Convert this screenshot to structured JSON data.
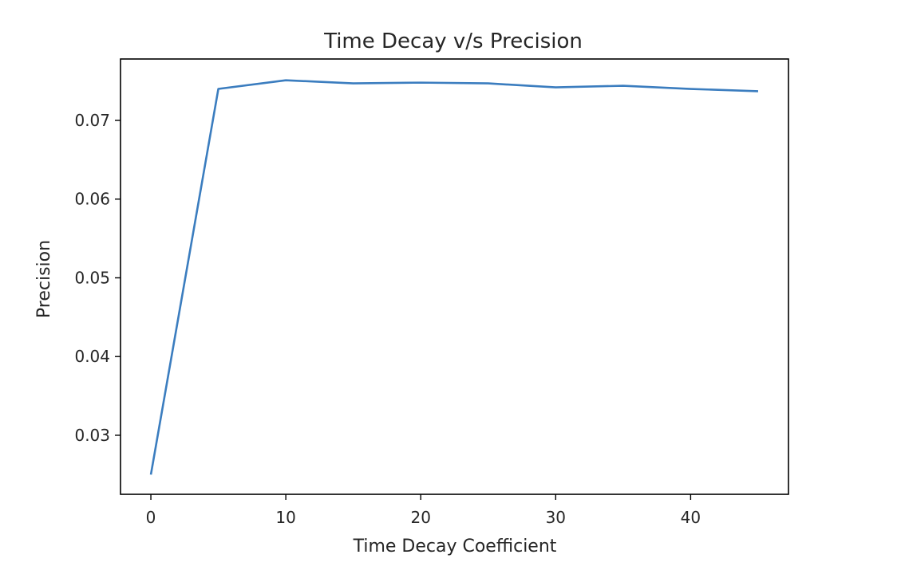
{
  "chart_data": {
    "type": "line",
    "title": "Time Decay v/s Precision",
    "xlabel": "Time Decay Coefficient",
    "ylabel": "Precision",
    "x": [
      0,
      5,
      10,
      15,
      20,
      25,
      30,
      35,
      40,
      45
    ],
    "series": [
      {
        "values": [
          0.025,
          0.074,
          0.0751,
          0.0747,
          0.0748,
          0.0747,
          0.0742,
          0.0744,
          0.074,
          0.0737
        ]
      }
    ],
    "xticks": [
      0,
      10,
      20,
      30,
      40
    ],
    "xtick_labels": [
      "0",
      "10",
      "20",
      "30",
      "40"
    ],
    "yticks": [
      0.03,
      0.04,
      0.05,
      0.06,
      0.07
    ],
    "ytick_labels": [
      "0.03",
      "0.04",
      "0.05",
      "0.06",
      "0.07"
    ],
    "xlim": [
      -2.25,
      47.25
    ],
    "ylim": [
      0.0225,
      0.0778
    ],
    "grid": false,
    "line_color": "#3b7dbf"
  }
}
